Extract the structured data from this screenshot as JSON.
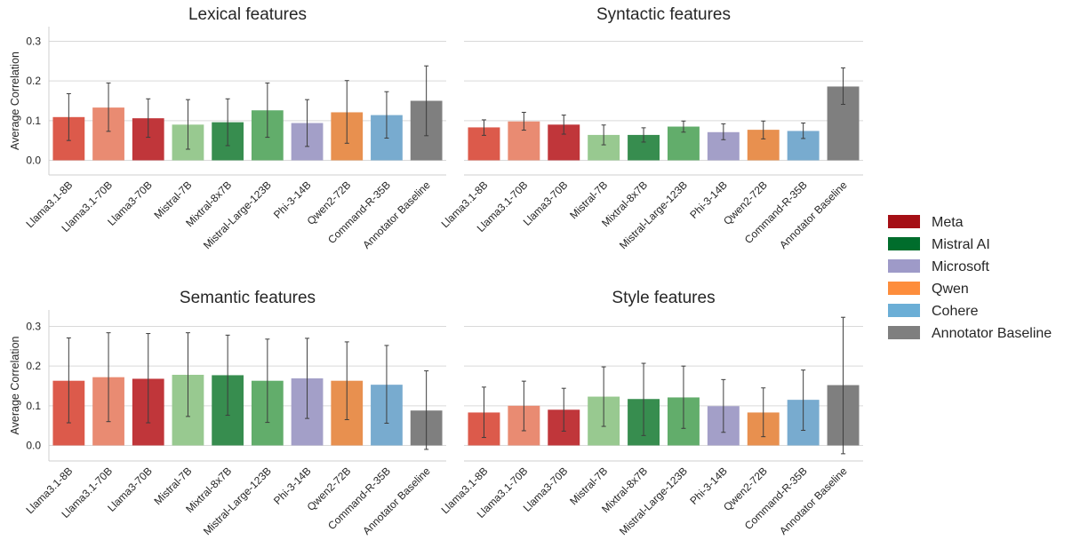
{
  "chart_data": {
    "type": "bar",
    "categories": [
      "Llama3.1-8B",
      "Llama3.1-70B",
      "Llama3-70B",
      "Mistral-7B",
      "Mixtral-8x7B",
      "Mistral-Large-123B",
      "Phi-3-14B",
      "Qwen2-72B",
      "Command-R-35B",
      "Annotator Baseline"
    ],
    "bar_colors": [
      "#dc5a4b",
      "#e98b72",
      "#c0363a",
      "#98c990",
      "#378d4f",
      "#62ad6b",
      "#a39fc8",
      "#e8904f",
      "#78abcf",
      "#7f7f7f"
    ],
    "ylabel": "Average Correlation",
    "ylim": [
      -0.035,
      0.34
    ],
    "yticks": [
      0.0,
      0.1,
      0.2,
      0.3
    ],
    "ytick_labels": [
      "0.0",
      "0.1",
      "0.2",
      "0.3"
    ],
    "grid": true,
    "panels": [
      {
        "title": "Lexical features",
        "values": [
          0.109,
          0.133,
          0.106,
          0.09,
          0.096,
          0.126,
          0.094,
          0.121,
          0.114,
          0.15
        ],
        "err_low": [
          0.05,
          0.073,
          0.058,
          0.028,
          0.037,
          0.058,
          0.035,
          0.043,
          0.056,
          0.062
        ],
        "err_high": [
          0.168,
          0.195,
          0.155,
          0.153,
          0.155,
          0.195,
          0.153,
          0.201,
          0.173,
          0.238
        ]
      },
      {
        "title": "Syntactic features",
        "values": [
          0.083,
          0.098,
          0.09,
          0.064,
          0.064,
          0.085,
          0.071,
          0.077,
          0.074,
          0.186
        ],
        "err_low": [
          0.063,
          0.076,
          0.066,
          0.039,
          0.046,
          0.071,
          0.052,
          0.054,
          0.055,
          0.141
        ],
        "err_high": [
          0.102,
          0.121,
          0.114,
          0.089,
          0.082,
          0.099,
          0.092,
          0.099,
          0.094,
          0.233
        ]
      },
      {
        "title": "Semantic features",
        "values": [
          0.163,
          0.172,
          0.168,
          0.178,
          0.177,
          0.163,
          0.169,
          0.163,
          0.153,
          0.088
        ],
        "err_low": [
          0.057,
          0.06,
          0.057,
          0.073,
          0.076,
          0.058,
          0.068,
          0.065,
          0.056,
          -0.01
        ],
        "err_high": [
          0.271,
          0.284,
          0.282,
          0.284,
          0.278,
          0.268,
          0.27,
          0.261,
          0.252,
          0.188
        ]
      },
      {
        "title": "Style features",
        "values": [
          0.083,
          0.1,
          0.09,
          0.123,
          0.117,
          0.121,
          0.099,
          0.083,
          0.115,
          0.152
        ],
        "err_low": [
          0.02,
          0.037,
          0.036,
          0.048,
          0.025,
          0.043,
          0.033,
          0.022,
          0.038,
          -0.021
        ],
        "err_high": [
          0.147,
          0.162,
          0.144,
          0.198,
          0.207,
          0.2,
          0.166,
          0.145,
          0.19,
          0.323
        ]
      }
    ],
    "legend": {
      "placement": "right",
      "entries": [
        {
          "label": "Meta",
          "color": "#a50f15"
        },
        {
          "label": "Mistral AI",
          "color": "#006d2c"
        },
        {
          "label": "Microsoft",
          "color": "#9e9ac8"
        },
        {
          "label": "Qwen",
          "color": "#fd8d3c"
        },
        {
          "label": "Cohere",
          "color": "#6baed6"
        },
        {
          "label": "Annotator Baseline",
          "color": "#7f7f7f"
        }
      ]
    }
  }
}
